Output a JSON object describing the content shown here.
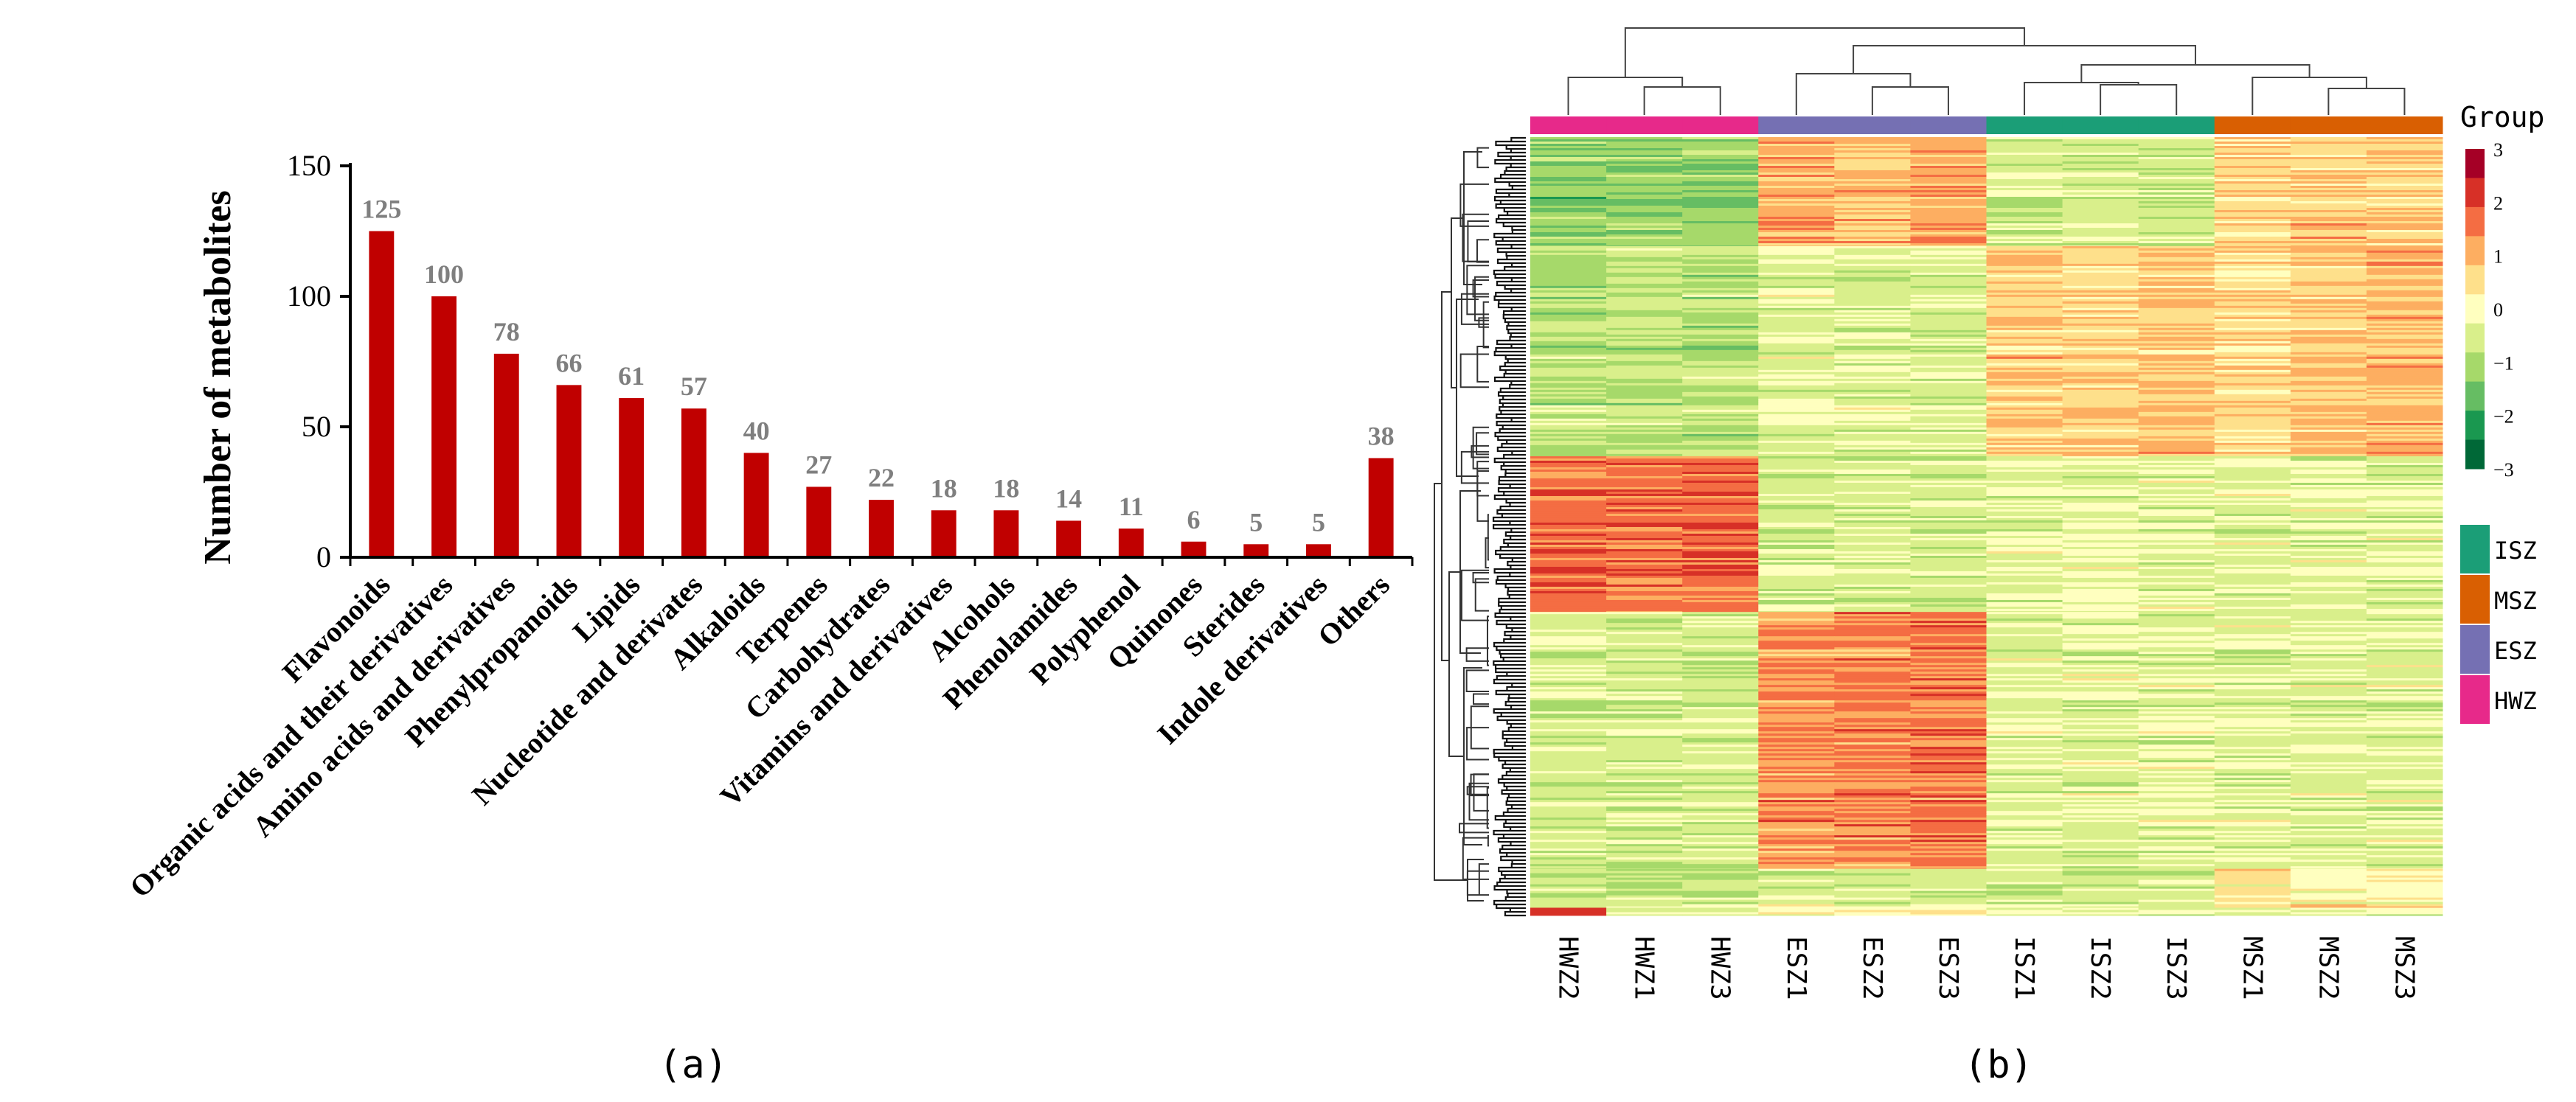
{
  "chart_data": [
    {
      "type": "bar",
      "panel_label": "(a)",
      "ylabel": "Number of metabolites",
      "xlabel": "",
      "ylim": [
        0,
        150
      ],
      "yticks": [
        0,
        50,
        100,
        150
      ],
      "bar_color": "#c00000",
      "value_label_color": "#7f7f7f",
      "categories": [
        "Flavonoids",
        "Organic acids and their derivatives",
        "Amino acids and derivatives",
        "Phenylpropanoids",
        "Lipids",
        "Nucleotide and derivates",
        "Alkaloids",
        "Terpenes",
        "Carbohydrates",
        "Vitamins and derivatives",
        "Alcohols",
        "Phenolamides",
        "Polyphenol",
        "Quinones",
        "Sterides",
        "Indole derivatives",
        "Others"
      ],
      "values": [
        125,
        100,
        78,
        66,
        61,
        57,
        40,
        27,
        22,
        18,
        18,
        14,
        11,
        6,
        5,
        5,
        38
      ]
    },
    {
      "type": "heatmap",
      "panel_label": "(b)",
      "samples": [
        "HWZ2",
        "HWZ1",
        "HWZ3",
        "ESZ1",
        "ESZ2",
        "ESZ3",
        "ISZ1",
        "ISZ2",
        "ISZ3",
        "MSZ1",
        "MSZ2",
        "MSZ3"
      ],
      "sample_groups": [
        "HWZ",
        "HWZ",
        "HWZ",
        "ESZ",
        "ESZ",
        "ESZ",
        "ISZ",
        "ISZ",
        "ISZ",
        "MSZ",
        "MSZ",
        "MSZ"
      ],
      "color_scale": {
        "title": "Group",
        "ticks": [
          "3",
          "2",
          "1",
          "0",
          "−1",
          "−2",
          "−3"
        ],
        "range": [
          -3,
          3
        ],
        "colors": [
          "#a50026",
          "#d73027",
          "#f46d43",
          "#fdae61",
          "#fee08b",
          "#ffffbf",
          "#d9ef8b",
          "#a6d96a",
          "#66bd63",
          "#1a9850",
          "#006837"
        ]
      },
      "group_legend": [
        {
          "name": "ISZ",
          "color": "#1b9e77"
        },
        {
          "name": "MSZ",
          "color": "#d95f02"
        },
        {
          "name": "ESZ",
          "color": "#7570b3"
        },
        {
          "name": "HWZ",
          "color": "#e7298a"
        }
      ],
      "block_profile": {
        "row_blocks": [
          "block1",
          "block2",
          "block3",
          "block4",
          "block5",
          "block6"
        ],
        "row_fractions": [
          0.14,
          0.27,
          0.2,
          0.33,
          0.05,
          0.01
        ],
        "mean_z_by_sample": [
          [
            -1.4,
            -1.4,
            -1.4,
            1.2,
            0.9,
            1.2,
            -0.6,
            -0.6,
            -0.7,
            0.6,
            0.8,
            0.7
          ],
          [
            -0.9,
            -0.9,
            -0.9,
            -0.4,
            -0.4,
            -0.5,
            0.8,
            0.7,
            0.9,
            0.6,
            0.9,
            1.1
          ],
          [
            1.8,
            1.7,
            1.8,
            -0.6,
            -0.6,
            -0.6,
            -0.3,
            -0.3,
            -0.3,
            -0.4,
            -0.4,
            -0.4
          ],
          [
            -0.6,
            -0.6,
            -0.6,
            1.4,
            1.5,
            1.7,
            -0.4,
            -0.4,
            -0.4,
            -0.4,
            -0.4,
            -0.4
          ],
          [
            -0.8,
            -0.8,
            -0.8,
            -0.5,
            -0.5,
            -0.5,
            -0.5,
            -0.5,
            -0.5,
            0.3,
            0.2,
            0.1
          ],
          [
            2.4,
            -0.4,
            -0.4,
            0.2,
            0.1,
            0.2,
            -0.4,
            -0.4,
            -0.4,
            -0.3,
            -0.3,
            -0.3
          ]
        ]
      }
    }
  ]
}
